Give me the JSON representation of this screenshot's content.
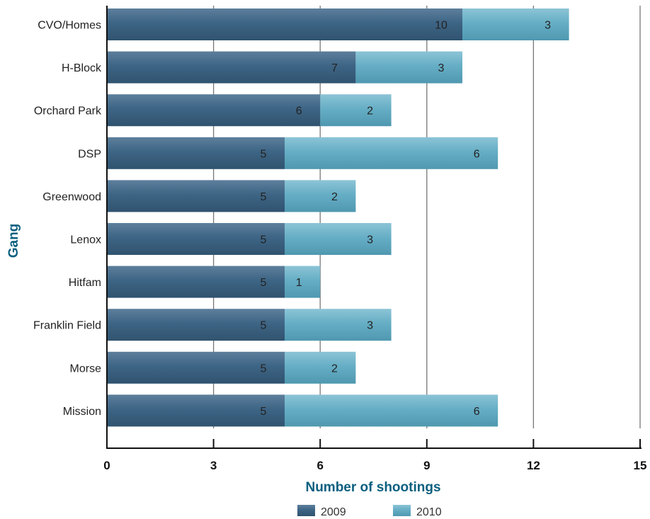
{
  "chart_data": {
    "type": "bar",
    "orientation": "horizontal",
    "stacked": true,
    "categories": [
      "CVO/Homes",
      "H-Block",
      "Orchard Park",
      "DSP",
      "Greenwood",
      "Lenox",
      "Hitfam",
      "Franklin Field",
      "Morse",
      "Mission"
    ],
    "series": [
      {
        "name": "2009",
        "values": [
          10,
          7,
          6,
          5,
          5,
          5,
          5,
          5,
          5,
          5
        ],
        "color": "#3e6585"
      },
      {
        "name": "2010",
        "values": [
          3,
          3,
          2,
          6,
          2,
          3,
          1,
          3,
          2,
          6
        ],
        "color": "#66aec5"
      }
    ],
    "xlabel": "Number of shootings",
    "ylabel": "Gang",
    "xlim": [
      0,
      15
    ],
    "xticks": [
      0,
      3,
      6,
      9,
      12,
      15
    ],
    "grid": "vertical",
    "legend": "bottom"
  }
}
